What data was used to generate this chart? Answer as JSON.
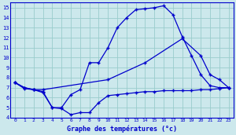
{
  "title": "Graphe des températures (°c)",
  "bg_color": "#cce8ec",
  "grid_color": "#99cccc",
  "line_color": "#0000cc",
  "xlim": [
    -0.5,
    23.5
  ],
  "ylim": [
    4,
    15.5
  ],
  "xticks": [
    0,
    1,
    2,
    3,
    4,
    5,
    6,
    7,
    8,
    9,
    10,
    11,
    12,
    13,
    14,
    15,
    16,
    17,
    18,
    19,
    20,
    21,
    22,
    23
  ],
  "yticks": [
    4,
    5,
    6,
    7,
    8,
    9,
    10,
    11,
    12,
    13,
    14,
    15
  ],
  "line_max_x": [
    0,
    1,
    2,
    3,
    4,
    5,
    6,
    7,
    8,
    9,
    10,
    11,
    12,
    13,
    14,
    15,
    16,
    17,
    18,
    19,
    20,
    21,
    22,
    23
  ],
  "line_max_y": [
    7.5,
    7.0,
    6.8,
    6.6,
    5.0,
    5.0,
    6.3,
    6.8,
    9.5,
    9.5,
    11.0,
    13.0,
    14.0,
    14.8,
    14.9,
    15.0,
    15.2,
    14.3,
    12.1,
    10.2,
    8.3,
    7.2,
    7.0,
    7.0
  ],
  "line_avg_x": [
    0,
    1,
    2,
    3,
    10,
    14,
    18,
    20,
    21,
    22,
    23
  ],
  "line_avg_y": [
    7.5,
    7.0,
    6.8,
    6.8,
    7.8,
    9.5,
    11.9,
    10.2,
    8.3,
    7.8,
    7.0
  ],
  "line_min_x": [
    0,
    1,
    2,
    3,
    4,
    5,
    6,
    7,
    8,
    9,
    10,
    11,
    12,
    13,
    14,
    15,
    16,
    17,
    18,
    19,
    20,
    21,
    22,
    23
  ],
  "line_min_y": [
    7.5,
    6.9,
    6.8,
    6.5,
    5.0,
    4.9,
    4.3,
    4.5,
    4.5,
    5.5,
    6.2,
    6.3,
    6.4,
    6.5,
    6.6,
    6.6,
    6.7,
    6.7,
    6.7,
    6.7,
    6.8,
    6.8,
    6.9,
    7.0
  ]
}
